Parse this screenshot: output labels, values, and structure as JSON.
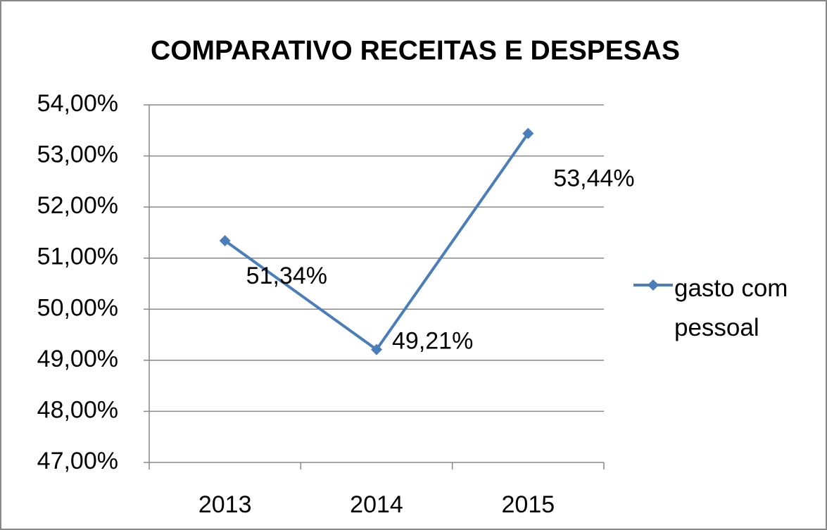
{
  "chart_data": {
    "type": "line",
    "title": "COMPARATIVO RECEITAS E DESPESAS",
    "categories": [
      "2013",
      "2014",
      "2015"
    ],
    "series": [
      {
        "name": "gasto com pessoal",
        "color": "#4a7ebb",
        "values": [
          51.34,
          49.21,
          53.44
        ],
        "value_labels": [
          "51,34%",
          "49,21%",
          "53,44%"
        ]
      }
    ],
    "ylim": [
      47,
      54
    ],
    "yticks": [
      {
        "value": 47,
        "label": "47,00%"
      },
      {
        "value": 48,
        "label": "48,00%"
      },
      {
        "value": 49,
        "label": "49,00%"
      },
      {
        "value": 50,
        "label": "50,00%"
      },
      {
        "value": 51,
        "label": "51,00%"
      },
      {
        "value": 52,
        "label": "52,00%"
      },
      {
        "value": 53,
        "label": "53,00%"
      },
      {
        "value": 54,
        "label": "54,00%"
      }
    ],
    "grid": true,
    "legend": "right"
  }
}
